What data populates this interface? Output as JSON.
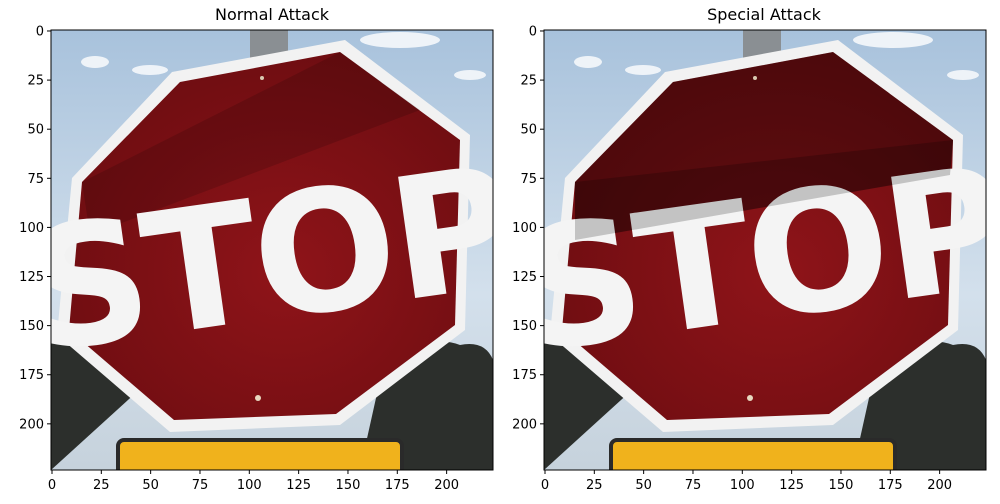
{
  "figure": {
    "panels": [
      {
        "title": "Normal Attack",
        "image_depicts": "stop-sign-photo",
        "sign_text": "STOP",
        "shadow_band": "lower-left-diagonal",
        "x_ticks": [
          "0",
          "25",
          "50",
          "75",
          "100",
          "125",
          "150",
          "175",
          "200"
        ],
        "y_ticks": [
          "0",
          "25",
          "50",
          "75",
          "100",
          "125",
          "150",
          "175",
          "200"
        ]
      },
      {
        "title": "Special Attack",
        "image_depicts": "stop-sign-photo",
        "sign_text": "STOP",
        "shadow_band": "upper-diagonal",
        "x_ticks": [
          "0",
          "25",
          "50",
          "75",
          "100",
          "125",
          "150",
          "175",
          "200"
        ],
        "y_ticks": [
          "0",
          "25",
          "50",
          "75",
          "100",
          "125",
          "150",
          "175",
          "200"
        ]
      }
    ],
    "colors": {
      "sky": "#b9cfe3",
      "sign_red": "#7e1014",
      "sign_border": "#f2f2f2",
      "letters": "#f4f4f4",
      "trees": "#2c2f2c",
      "yellow_sign": "#f0b21c",
      "pole": "#8a8f93"
    }
  }
}
